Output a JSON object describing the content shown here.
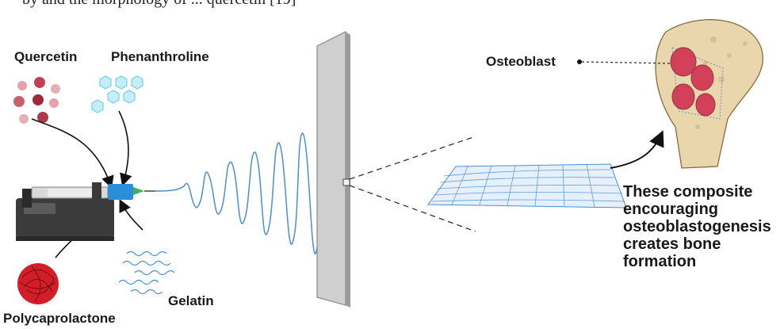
{
  "top_text_fragment": "by and the morphology of ... quercetin [19]",
  "labels": {
    "quercetin": "Quercetin",
    "phenanthroline": "Phenanthroline",
    "polycaprolactone": "Polycaprolactone",
    "gelatin": "Gelatin",
    "osteoblast": "Osteoblast"
  },
  "caption_lines": [
    "These composite",
    "encouraging",
    "osteoblastogenesis",
    "creates bone",
    "formation"
  ],
  "colors": {
    "fiber": "#4a8fd0",
    "collector": "#c8c8c8",
    "quercetin": "#b03040",
    "phenanthroline": "#9fdcec",
    "pcl": "#b0141e",
    "bone": "#e8d3a8",
    "osteoblast": "#d0284a"
  }
}
